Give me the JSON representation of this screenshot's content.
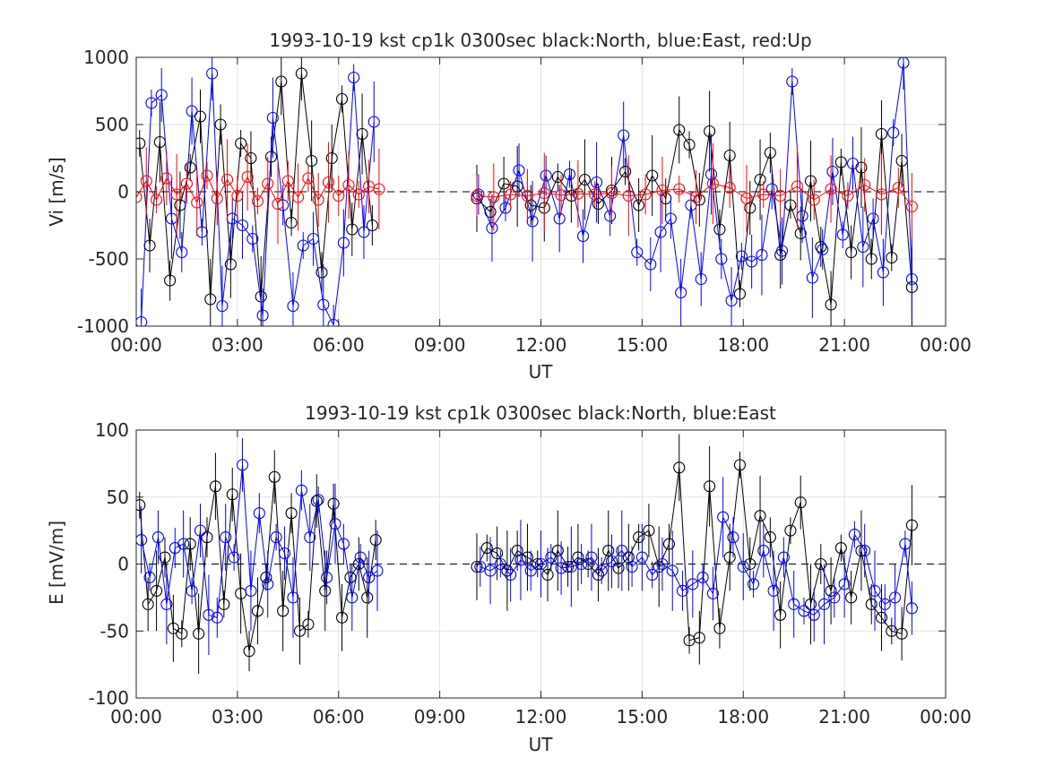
{
  "chart_data": [
    {
      "type": "line",
      "title": "1993-10-19 kst cp1k 0300sec black:North, blue:East, red:Up",
      "xlabel": "UT",
      "ylabel": "Vi [m/s]",
      "xlim": [
        0,
        24
      ],
      "ylim": [
        -1000,
        1000
      ],
      "xticks": [
        0,
        3,
        6,
        9,
        12,
        15,
        18,
        21,
        24
      ],
      "xticklabels": [
        "00:00",
        "03:00",
        "06:00",
        "09:00",
        "12:00",
        "15:00",
        "18:00",
        "21:00",
        "00:00"
      ],
      "yticks": [
        -1000,
        -500,
        0,
        500,
        1000
      ],
      "yticklabels": [
        "-1000",
        "-500",
        "0",
        "500",
        "1000"
      ],
      "grid": true,
      "zero_line": true,
      "segments": [
        [
          0.0,
          7.2
        ],
        [
          10.1,
          23.0
        ]
      ],
      "series": [
        {
          "name": "North",
          "color": "#000000",
          "marker": "circle",
          "error_bars": true,
          "x": [
            0.1,
            0.4,
            0.7,
            1.0,
            1.3,
            1.6,
            1.9,
            2.2,
            2.5,
            2.8,
            3.1,
            3.4,
            3.7,
            4.0,
            4.3,
            4.6,
            4.9,
            5.2,
            5.5,
            5.8,
            6.1,
            6.4,
            6.7,
            7.0,
            10.1,
            10.5,
            10.9,
            11.3,
            11.7,
            12.1,
            12.5,
            12.9,
            13.3,
            13.7,
            14.1,
            14.5,
            14.9,
            15.3,
            15.7,
            16.1,
            16.4,
            16.7,
            17.0,
            17.3,
            17.6,
            17.9,
            18.2,
            18.5,
            18.8,
            19.1,
            19.4,
            19.7,
            20.0,
            20.3,
            20.6,
            20.9,
            21.2,
            21.5,
            21.8,
            22.1,
            22.4,
            22.7,
            23.0
          ],
          "values": [
            360,
            -400,
            370,
            -660,
            -100,
            180,
            560,
            -800,
            500,
            -540,
            360,
            250,
            -780,
            260,
            820,
            -230,
            880,
            230,
            -600,
            250,
            690,
            -280,
            430,
            -250,
            -50,
            -150,
            60,
            40,
            -100,
            -120,
            110,
            -30,
            90,
            -90,
            10,
            150,
            -100,
            120,
            -50,
            460,
            350,
            -60,
            450,
            -280,
            270,
            -760,
            -120,
            90,
            290,
            -470,
            -100,
            -310,
            80,
            -410,
            -840,
            220,
            -450,
            180,
            -500,
            430,
            -490,
            230,
            -710
          ]
        },
        {
          "name": "East",
          "color": "#0000ff",
          "marker": "circle",
          "error_bars": true,
          "x": [
            0.15,
            0.45,
            0.75,
            1.05,
            1.35,
            1.65,
            1.95,
            2.25,
            2.55,
            2.85,
            3.15,
            3.45,
            3.75,
            4.05,
            4.35,
            4.65,
            4.95,
            5.25,
            5.55,
            5.85,
            6.15,
            6.45,
            6.75,
            7.05,
            10.15,
            10.55,
            10.95,
            11.35,
            11.75,
            12.15,
            12.55,
            12.85,
            13.25,
            13.65,
            14.05,
            14.45,
            14.85,
            15.25,
            15.55,
            15.85,
            16.15,
            16.45,
            16.75,
            17.05,
            17.35,
            17.65,
            17.95,
            18.25,
            18.55,
            18.85,
            19.15,
            19.45,
            19.75,
            20.05,
            20.35,
            20.65,
            20.95,
            21.25,
            21.55,
            21.85,
            22.15,
            22.45,
            22.75,
            23.0
          ],
          "values": [
            -970,
            660,
            720,
            -200,
            -450,
            600,
            -300,
            880,
            -850,
            -200,
            -250,
            -350,
            -920,
            550,
            -100,
            -850,
            -400,
            -350,
            -840,
            -990,
            -380,
            850,
            -300,
            520,
            -20,
            -270,
            -120,
            160,
            -220,
            120,
            -200,
            130,
            -330,
            70,
            -180,
            420,
            -450,
            -540,
            -300,
            -200,
            -750,
            -100,
            -650,
            130,
            -500,
            -810,
            -480,
            -520,
            -470,
            20,
            -440,
            820,
            -180,
            -640,
            -430,
            150,
            -320,
            210,
            -410,
            -200,
            -600,
            440,
            960,
            -650
          ]
        },
        {
          "name": "Up",
          "color": "#ff0000",
          "marker": "circle",
          "error_bars": true,
          "x": [
            0.0,
            0.3,
            0.6,
            0.9,
            1.2,
            1.5,
            1.8,
            2.1,
            2.4,
            2.7,
            3.0,
            3.3,
            3.6,
            3.9,
            4.2,
            4.5,
            4.8,
            5.1,
            5.4,
            5.7,
            6.0,
            6.3,
            6.6,
            6.9,
            7.2,
            10.1,
            10.6,
            11.1,
            11.6,
            12.1,
            12.6,
            13.1,
            13.6,
            14.1,
            14.6,
            15.1,
            15.6,
            16.1,
            16.6,
            17.1,
            17.6,
            18.1,
            18.6,
            19.1,
            19.6,
            20.1,
            20.6,
            21.1,
            21.6,
            22.1,
            22.6,
            23.0
          ],
          "values": [
            -40,
            80,
            -60,
            100,
            -20,
            60,
            -80,
            120,
            -50,
            90,
            -30,
            110,
            -70,
            60,
            -90,
            80,
            -40,
            100,
            -60,
            70,
            -30,
            50,
            -20,
            40,
            20,
            -30,
            -40,
            -20,
            -30,
            -10,
            -25,
            -15,
            -20,
            -10,
            -30,
            -20,
            10,
            20,
            -40,
            60,
            30,
            -50,
            -20,
            -30,
            40,
            -60,
            20,
            -30,
            50,
            -20,
            30,
            -110
          ]
        }
      ]
    },
    {
      "type": "line",
      "title": "1993-10-19 kst cp1k 0300sec black:North, blue:East",
      "xlabel": "UT",
      "ylabel": "E [mV/m]",
      "xlim": [
        0,
        24
      ],
      "ylim": [
        -100,
        100
      ],
      "xticks": [
        0,
        3,
        6,
        9,
        12,
        15,
        18,
        21,
        24
      ],
      "xticklabels": [
        "00:00",
        "03:00",
        "06:00",
        "09:00",
        "12:00",
        "15:00",
        "18:00",
        "21:00",
        "00:00"
      ],
      "yticks": [
        -100,
        -50,
        0,
        50,
        100
      ],
      "yticklabels": [
        "-100",
        "-50",
        "0",
        "50",
        "100"
      ],
      "grid": true,
      "zero_line": true,
      "segments": [
        [
          0.0,
          7.2
        ],
        [
          10.1,
          23.0
        ]
      ],
      "series": [
        {
          "name": "North",
          "color": "#000000",
          "marker": "circle",
          "error_bars": true,
          "x": [
            0.1,
            0.35,
            0.6,
            0.85,
            1.1,
            1.35,
            1.6,
            1.85,
            2.1,
            2.35,
            2.6,
            2.85,
            3.1,
            3.35,
            3.6,
            3.85,
            4.1,
            4.35,
            4.6,
            4.85,
            5.1,
            5.35,
            5.6,
            5.85,
            6.1,
            6.35,
            6.6,
            6.85,
            7.1,
            10.1,
            10.4,
            10.7,
            11.0,
            11.3,
            11.6,
            11.9,
            12.2,
            12.5,
            12.8,
            13.1,
            13.4,
            13.7,
            14.0,
            14.3,
            14.6,
            14.9,
            15.2,
            15.5,
            15.8,
            16.1,
            16.4,
            16.7,
            17.0,
            17.3,
            17.6,
            17.9,
            18.2,
            18.5,
            18.8,
            19.1,
            19.4,
            19.7,
            20.0,
            20.3,
            20.6,
            20.9,
            21.2,
            21.5,
            21.8,
            22.1,
            22.4,
            22.7,
            23.0
          ],
          "values": [
            44,
            -30,
            -20,
            5,
            -48,
            -52,
            15,
            -52,
            20,
            58,
            -30,
            52,
            -22,
            -65,
            -35,
            -10,
            65,
            -35,
            38,
            -50,
            -45,
            47,
            -20,
            45,
            -40,
            -10,
            0,
            -25,
            18,
            -2,
            12,
            8,
            -5,
            10,
            5,
            0,
            -8,
            10,
            -2,
            5,
            0,
            -8,
            10,
            -3,
            5,
            20,
            25,
            -2,
            15,
            72,
            -57,
            -55,
            58,
            -48,
            5,
            74,
            0,
            36,
            20,
            -38,
            25,
            46,
            -30,
            0,
            -20,
            12,
            -25,
            10,
            -30,
            -40,
            -50,
            -52,
            29
          ]
        },
        {
          "name": "East",
          "color": "#0000ff",
          "marker": "circle",
          "error_bars": true,
          "x": [
            0.15,
            0.4,
            0.65,
            0.9,
            1.15,
            1.4,
            1.65,
            1.9,
            2.15,
            2.4,
            2.65,
            2.9,
            3.15,
            3.4,
            3.65,
            3.9,
            4.15,
            4.4,
            4.65,
            4.9,
            5.15,
            5.4,
            5.65,
            5.9,
            6.15,
            6.4,
            6.65,
            6.9,
            7.15,
            10.2,
            10.5,
            10.8,
            11.1,
            11.4,
            11.7,
            12.0,
            12.3,
            12.6,
            12.9,
            13.2,
            13.5,
            13.8,
            14.1,
            14.4,
            14.7,
            15.0,
            15.3,
            15.6,
            15.9,
            16.2,
            16.5,
            16.8,
            17.1,
            17.4,
            17.7,
            18.0,
            18.3,
            18.6,
            18.9,
            19.2,
            19.5,
            19.8,
            20.1,
            20.4,
            20.7,
            21.0,
            21.3,
            21.6,
            21.9,
            22.2,
            22.5,
            22.8,
            23.0
          ],
          "values": [
            18,
            -10,
            20,
            -30,
            12,
            15,
            -20,
            25,
            -38,
            -40,
            20,
            5,
            74,
            -20,
            38,
            -15,
            20,
            8,
            -25,
            55,
            20,
            48,
            -10,
            30,
            15,
            -25,
            5,
            -10,
            -5,
            -2,
            -5,
            0,
            -8,
            3,
            -5,
            0,
            5,
            -3,
            -2,
            0,
            5,
            -5,
            2,
            10,
            -2,
            5,
            -8,
            0,
            -5,
            -20,
            -15,
            -10,
            -22,
            35,
            20,
            -2,
            -15,
            10,
            -20,
            5,
            -30,
            -35,
            -38,
            -30,
            -25,
            -15,
            22,
            10,
            -20,
            -30,
            -25,
            15,
            -33
          ]
        }
      ]
    }
  ]
}
